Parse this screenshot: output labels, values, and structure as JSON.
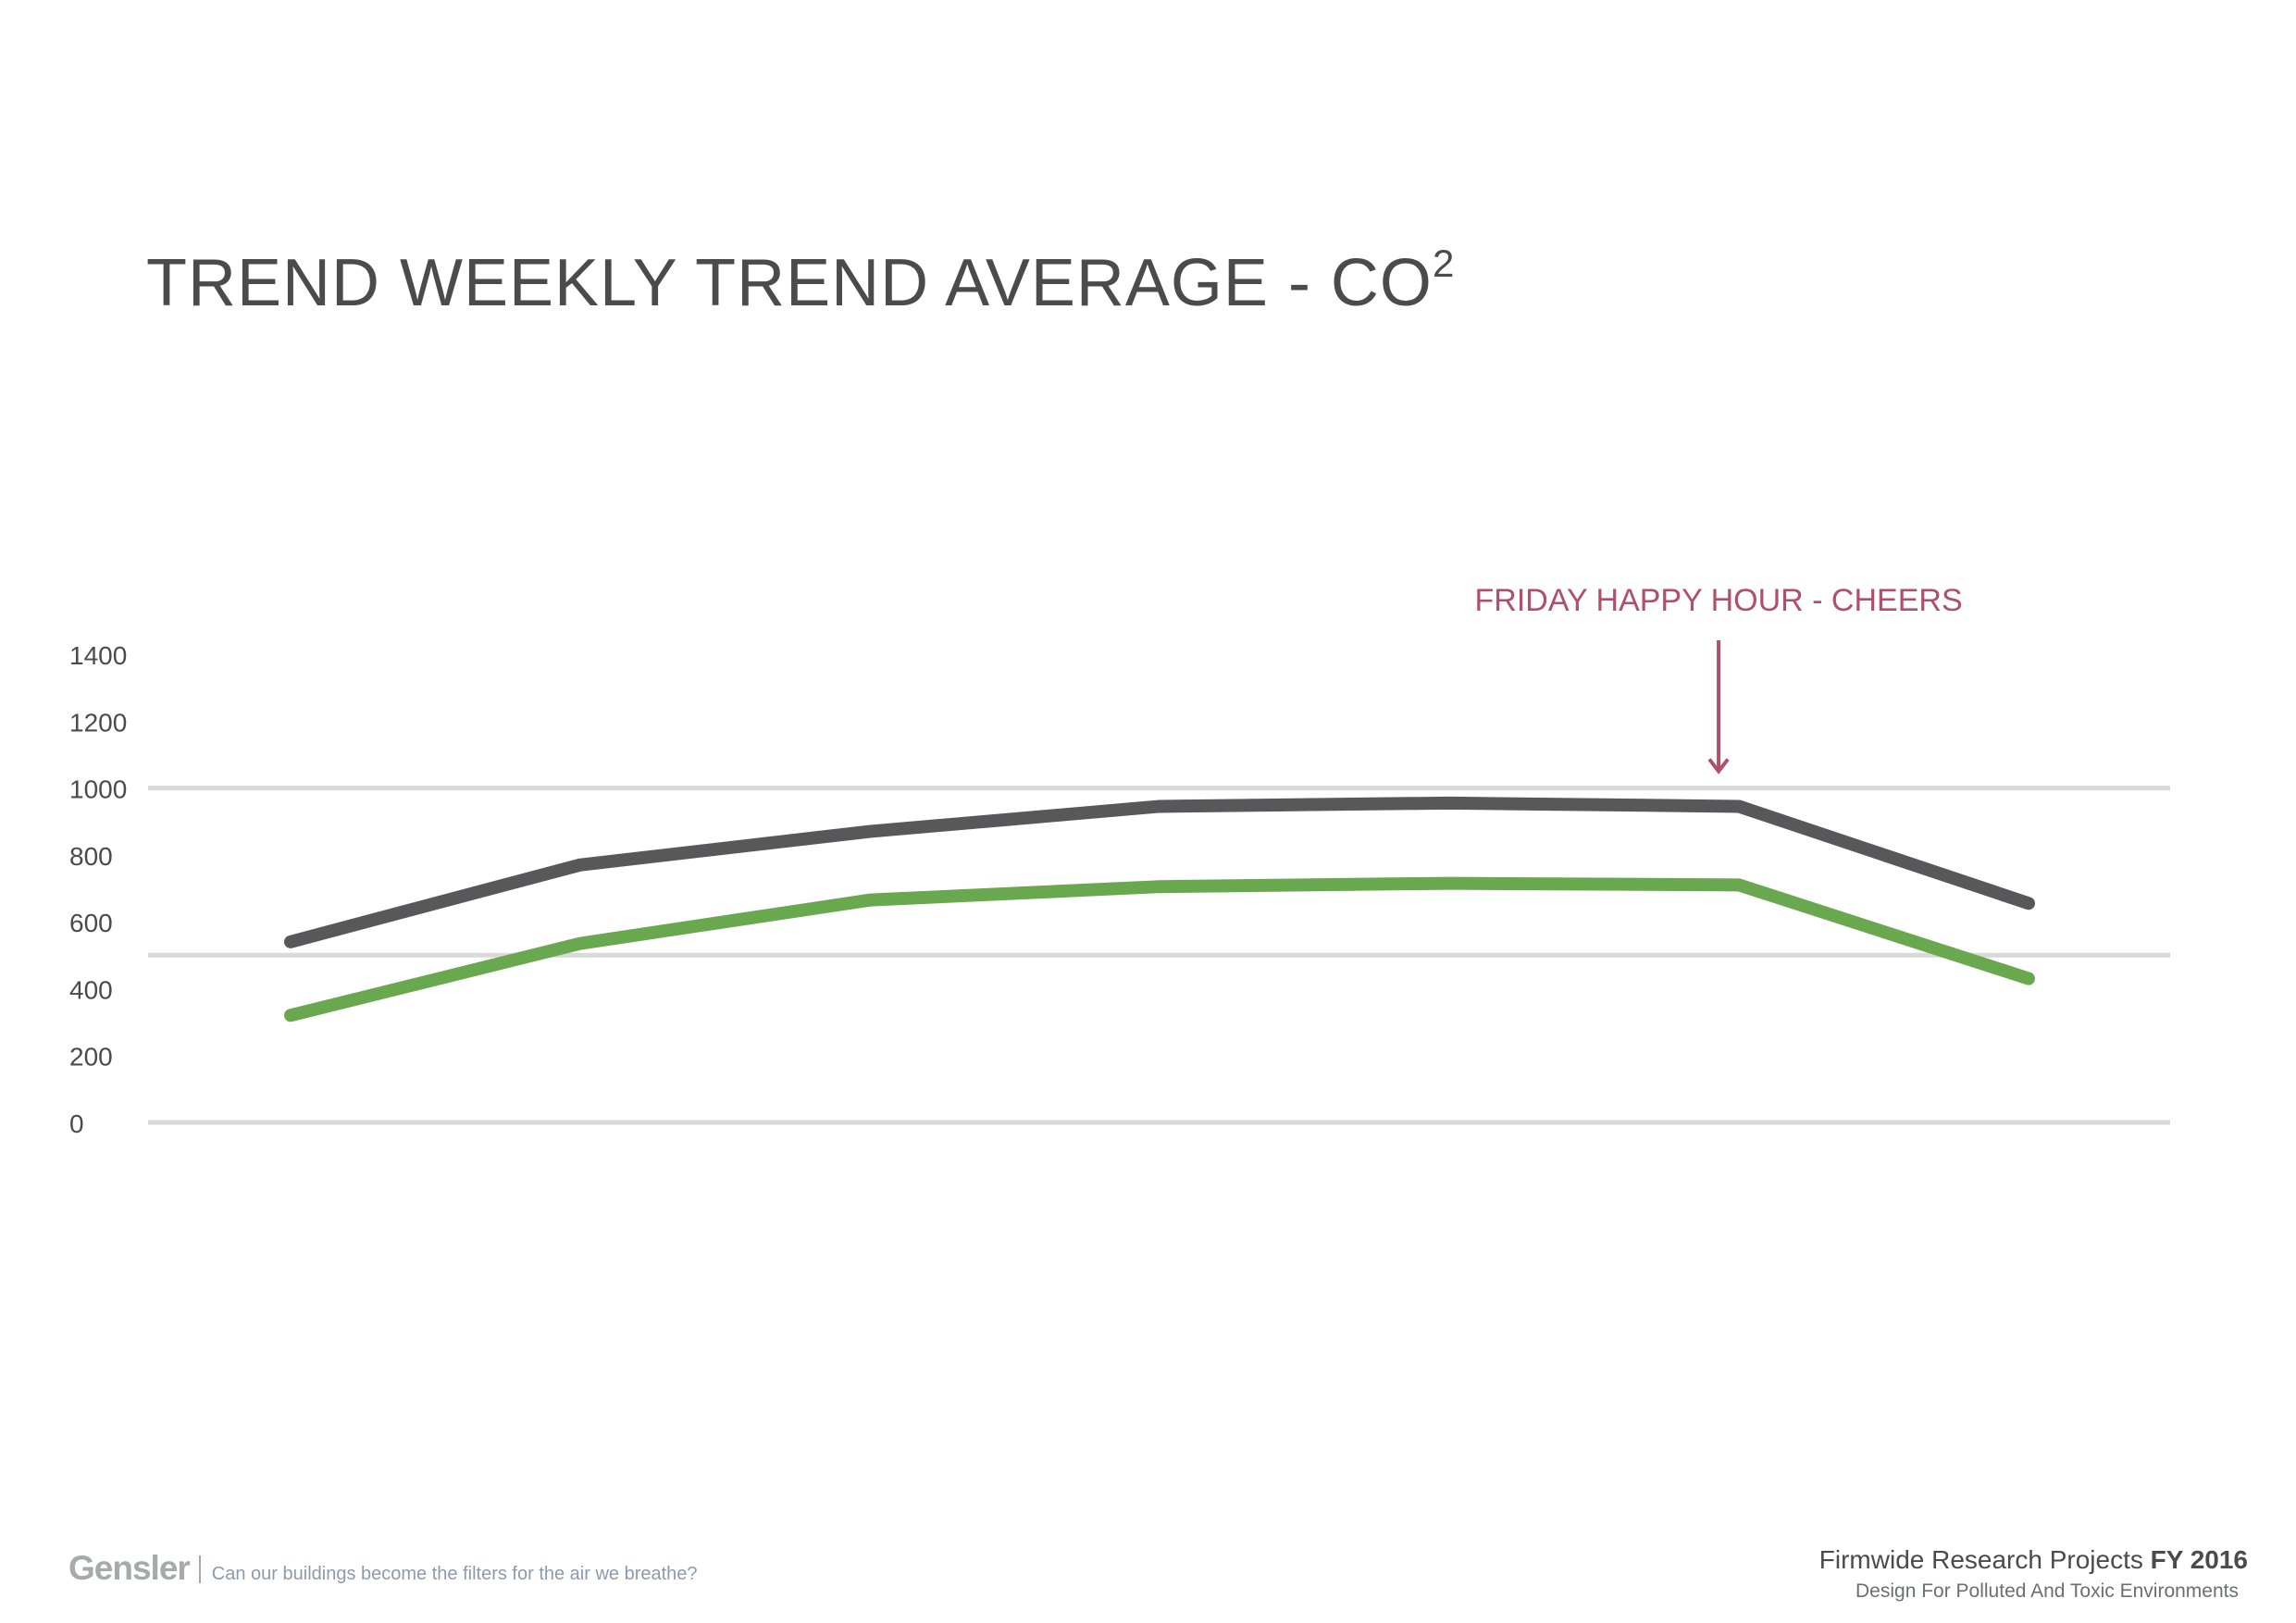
{
  "chart_data": {
    "type": "line",
    "title_main": "TREND WEEKLY TREND  AVERAGE - CO",
    "title_superscript": "2",
    "x": [
      1,
      2,
      3,
      4,
      5,
      6,
      7
    ],
    "y_ticks": [
      "1400",
      "1200",
      "1000",
      "800",
      "600",
      "400",
      "200",
      "0"
    ],
    "ylim": [
      0,
      1400
    ],
    "series": [
      {
        "color": "#58585a",
        "values": [
          540,
          770,
          870,
          945,
          955,
          945,
          655
        ]
      },
      {
        "color": "#6aa84f",
        "values": [
          320,
          535,
          665,
          705,
          715,
          710,
          430
        ]
      }
    ],
    "reference_lines": [
      1000,
      500,
      0
    ],
    "reference_line_color": "#d9d9d9",
    "annotation": {
      "text": "FRIDAY HAPPY HOUR - CHEERS",
      "x": 5.93,
      "y": 1000,
      "color": "#b05068"
    }
  },
  "footer": {
    "brand": "Gensler",
    "tagline": "Can our buildings become the filters for the air we breathe?",
    "project_prefix": "Firmwide Research Projects ",
    "project_year": "FY 2016",
    "project_subtitle": "Design For Polluted And Toxic Environments"
  }
}
